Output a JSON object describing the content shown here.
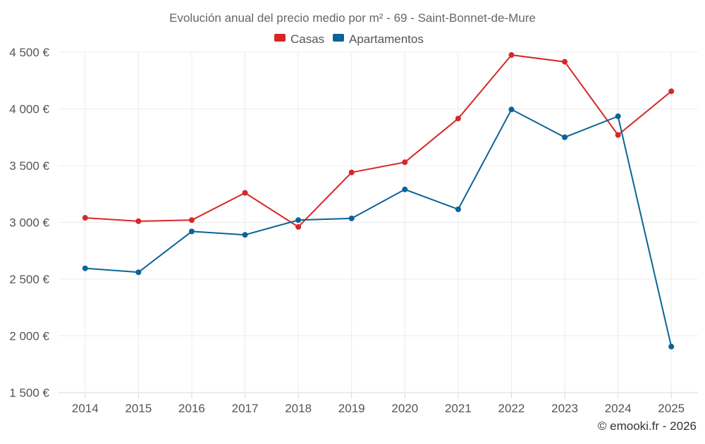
{
  "chart_data": {
    "type": "line",
    "title": "Evolución anual del precio medio por m² - 69 - Saint-Bonnet-de-Mure",
    "categories": [
      "2014",
      "2015",
      "2016",
      "2017",
      "2018",
      "2019",
      "2020",
      "2021",
      "2022",
      "2023",
      "2024",
      "2025"
    ],
    "series": [
      {
        "name": "Casas",
        "color": "#d62728",
        "values": [
          3040,
          3010,
          3020,
          3260,
          2960,
          3440,
          3530,
          3915,
          4475,
          4415,
          3770,
          4155
        ]
      },
      {
        "name": "Apartamentos",
        "color": "#0b6398",
        "values": [
          2595,
          2560,
          2920,
          2890,
          3020,
          3035,
          3290,
          3115,
          3995,
          3750,
          3935,
          1905
        ]
      }
    ],
    "ylim": [
      1500,
      4500
    ],
    "yticks": [
      1500,
      2000,
      2500,
      3000,
      3500,
      4000,
      4500
    ],
    "ytick_labels": [
      "1 500 €",
      "2 000 €",
      "2 500 €",
      "3 000 €",
      "3 500 €",
      "4 000 €",
      "4 500 €"
    ],
    "xlabel": "",
    "ylabel": "",
    "grid": true,
    "legend_position": "top-center"
  },
  "credit": "© emooki.fr - 2026"
}
